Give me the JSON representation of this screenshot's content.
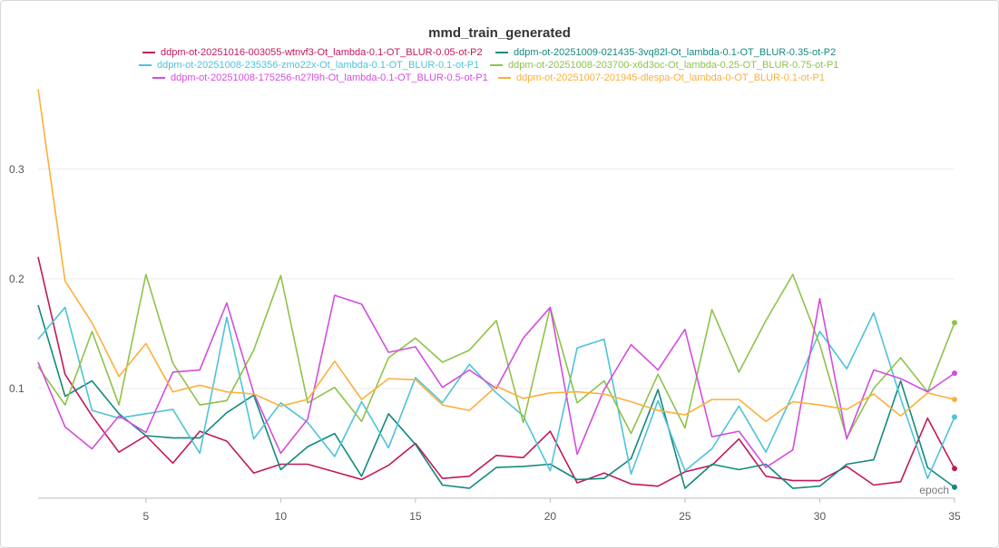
{
  "chart_data": {
    "type": "line",
    "title": "mmd_train_generated",
    "xlabel": "epoch",
    "ylabel": "",
    "xlim": [
      1,
      35
    ],
    "ylim": [
      0,
      0.375
    ],
    "x_ticks": [
      5,
      10,
      15,
      20,
      25,
      30,
      35
    ],
    "y_ticks": [
      0.1,
      0.2,
      0.3
    ],
    "x_tick_labels": [
      "5",
      "10",
      "15",
      "20",
      "25",
      "30",
      "35"
    ],
    "y_tick_labels": [
      "0.1",
      "0.2",
      "0.3"
    ],
    "grid": true,
    "legend_position": "top-center",
    "x": [
      1,
      2,
      3,
      4,
      5,
      6,
      7,
      8,
      9,
      10,
      11,
      12,
      13,
      14,
      15,
      16,
      17,
      18,
      19,
      20,
      21,
      22,
      23,
      24,
      25,
      26,
      27,
      28,
      29,
      30,
      31,
      32,
      33,
      34,
      35
    ],
    "series": [
      {
        "name": "ddpm-ot-20251016-003055-wtnvf3-Ot_lambda-0.1-OT_BLUR-0.05-ot-P2",
        "color": "#c2185b",
        "values": [
          0.22,
          0.113,
          0.075,
          0.042,
          0.057,
          0.032,
          0.061,
          0.052,
          0.023,
          0.031,
          0.031,
          0.024,
          0.017,
          0.03,
          0.05,
          0.018,
          0.02,
          0.039,
          0.037,
          0.061,
          0.014,
          0.023,
          0.013,
          0.011,
          0.024,
          0.03,
          0.054,
          0.02,
          0.016,
          0.016,
          0.029,
          0.012,
          0.015,
          0.073,
          0.027
        ]
      },
      {
        "name": "ddpm-ot-20251009-021435-3vq82l-Ot_lambda-0.1-OT_BLUR-0.35-ot-P2",
        "color": "#138a7e",
        "values": [
          0.176,
          0.093,
          0.107,
          0.077,
          0.057,
          0.055,
          0.055,
          0.078,
          0.094,
          0.026,
          0.047,
          0.059,
          0.02,
          0.077,
          0.049,
          0.012,
          0.009,
          0.028,
          0.029,
          0.031,
          0.017,
          0.018,
          0.036,
          0.099,
          0.009,
          0.031,
          0.026,
          0.031,
          0.009,
          0.011,
          0.031,
          0.035,
          0.107,
          0.028,
          0.01
        ]
      },
      {
        "name": "ddpm-ot-20251008-235356-zmo22x-Ot_lambda-0.1-OT_BLUR-0.1-ot-P1",
        "color": "#4ec3d8",
        "values": [
          0.145,
          0.174,
          0.08,
          0.073,
          0.077,
          0.081,
          0.041,
          0.165,
          0.054,
          0.087,
          0.069,
          0.038,
          0.088,
          0.046,
          0.11,
          0.087,
          0.122,
          0.096,
          0.075,
          0.025,
          0.137,
          0.145,
          0.022,
          0.089,
          0.025,
          0.045,
          0.084,
          0.042,
          0.095,
          0.152,
          0.118,
          0.169,
          0.091,
          0.018,
          0.074
        ]
      },
      {
        "name": "ddpm-ot-20251008-203700-x6d3oc-Ot_lambda-0.25-OT_BLUR-0.75-ot-P1",
        "color": "#8fc24a",
        "values": [
          0.12,
          0.085,
          0.152,
          0.085,
          0.204,
          0.123,
          0.085,
          0.089,
          0.135,
          0.203,
          0.087,
          0.101,
          0.07,
          0.128,
          0.146,
          0.124,
          0.135,
          0.162,
          0.069,
          0.174,
          0.087,
          0.107,
          0.059,
          0.113,
          0.064,
          0.172,
          0.115,
          0.162,
          0.204,
          0.14,
          0.055,
          0.1,
          0.128,
          0.097,
          0.16
        ]
      },
      {
        "name": "ddpm-ot-20251008-175256-n27l9h-Ot_lambda-0.1-OT_BLUR-0.5-ot-P1",
        "color": "#d44ddc",
        "values": [
          0.124,
          0.065,
          0.045,
          0.075,
          0.06,
          0.115,
          0.117,
          0.178,
          0.096,
          0.041,
          0.072,
          0.185,
          0.177,
          0.133,
          0.138,
          0.101,
          0.117,
          0.1,
          0.146,
          0.174,
          0.04,
          0.099,
          0.14,
          0.117,
          0.154,
          0.056,
          0.061,
          0.028,
          0.044,
          0.182,
          0.054,
          0.117,
          0.109,
          0.097,
          0.114
        ]
      },
      {
        "name": "ddpm-ot-20251007-201945-dlespa-Ot_lambda-0-OT_BLUR-0.1-ot-P1",
        "color": "#fbb03b",
        "values": [
          0.373,
          0.198,
          0.16,
          0.111,
          0.141,
          0.097,
          0.103,
          0.097,
          0.095,
          0.084,
          0.09,
          0.125,
          0.09,
          0.109,
          0.108,
          0.085,
          0.08,
          0.102,
          0.091,
          0.096,
          0.097,
          0.095,
          0.088,
          0.08,
          0.076,
          0.09,
          0.09,
          0.07,
          0.088,
          0.085,
          0.081,
          0.095,
          0.075,
          0.096,
          0.09
        ]
      }
    ]
  }
}
